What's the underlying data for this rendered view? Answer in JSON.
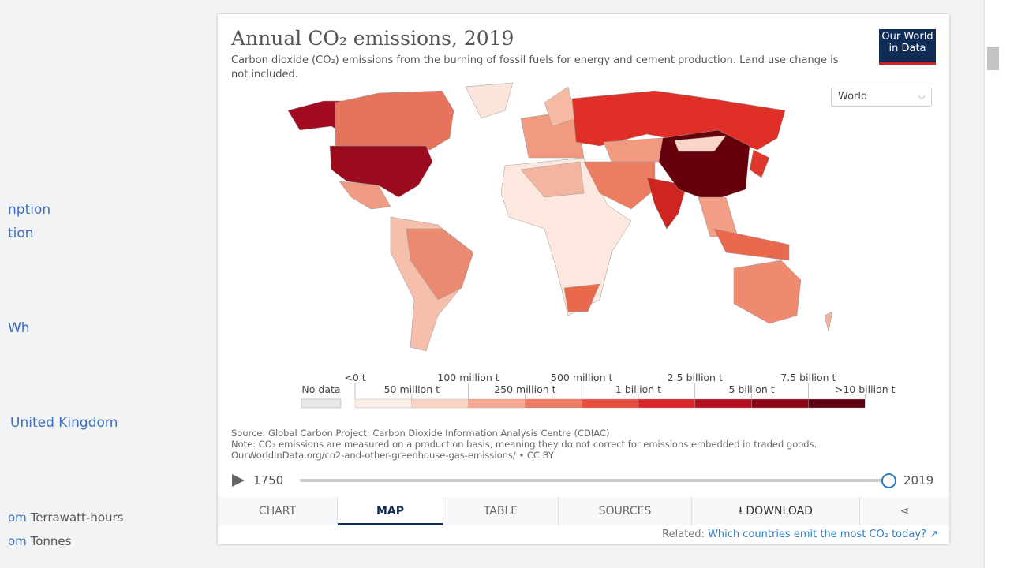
{
  "sidebar": {
    "items": [
      "nption",
      "tion",
      "Wh",
      "United Kingdom"
    ],
    "units": [
      {
        "prefix": "om",
        "unit": "Terrawatt-hours"
      },
      {
        "prefix": "om",
        "unit": "Tonnes"
      }
    ]
  },
  "chart": {
    "title": "Annual CO₂ emissions, 2019",
    "subtitle": "Carbon dioxide (CO₂) emissions from the burning of fossil fuels for energy and cement production. Land use change is not included.",
    "logo": [
      "Our World",
      "in Data"
    ],
    "region_select": "World",
    "legend": {
      "no_data": "No data",
      "ticks": [
        "<0 t",
        "50 million t",
        "100 million t",
        "250 million t",
        "500 million t",
        "1 billion t",
        "2.5 billion t",
        "5 billion t",
        "7.5 billion t",
        ">10 billion t"
      ],
      "colors": [
        "#fdeee8",
        "#fbd3c4",
        "#f5a88f",
        "#ee7b62",
        "#e6503e",
        "#d9272b",
        "#b3101f",
        "#8c0618",
        "#5e0011"
      ]
    },
    "sources": [
      "Source: Global Carbon Project; Carbon Dioxide Information Analysis Centre (CDIAC)",
      "Note: CO₂ emissions are measured on a production basis, meaning they do not correct for emissions embedded in traded goods.",
      "OurWorldInData.org/co2-and-other-greenhouse-gas-emissions/ • CC BY"
    ],
    "timeline": {
      "start": 1750,
      "end": 2019
    }
  },
  "tabs": [
    "CHART",
    "MAP",
    "TABLE",
    "SOURCES",
    "DOWNLOAD"
  ],
  "related": {
    "label": "Related:",
    "link": "Which countries emit the most CO₂ today?"
  }
}
